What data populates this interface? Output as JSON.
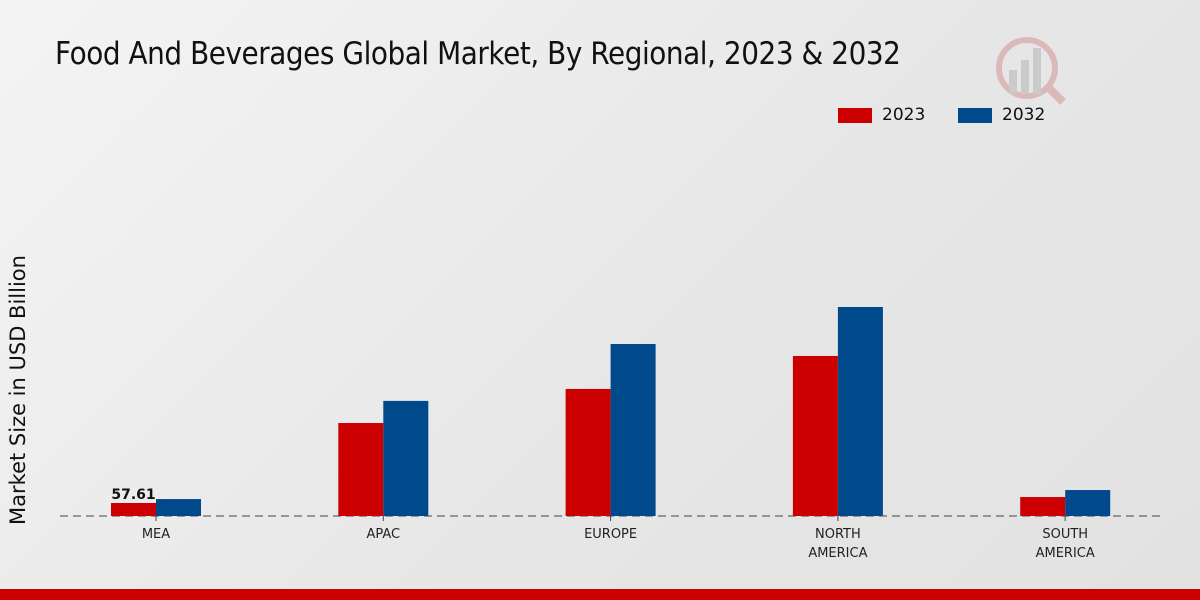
{
  "chart_data": {
    "type": "bar",
    "title": "Food And Beverages Global Market, By Regional, 2023 & 2032",
    "xlabel": "",
    "ylabel": "Market Size in USD Billion",
    "categories": [
      [
        "MEA"
      ],
      [
        "APAC"
      ],
      [
        "EUROPE"
      ],
      [
        "NORTH",
        "AMERICA"
      ],
      [
        "SOUTH",
        "AMERICA"
      ]
    ],
    "series": [
      {
        "name": "2023",
        "color": "#cc0000",
        "values": [
          57.61,
          412,
          563,
          709,
          84
        ]
      },
      {
        "name": "2032",
        "color": "#004a8c",
        "values": [
          75,
          510,
          762,
          926,
          115
        ]
      }
    ],
    "data_labels": [
      {
        "series": 0,
        "index": 0,
        "text": "57.61"
      }
    ],
    "ylim": [
      0,
      1000
    ],
    "grid": false,
    "legend_position": "top-right"
  }
}
